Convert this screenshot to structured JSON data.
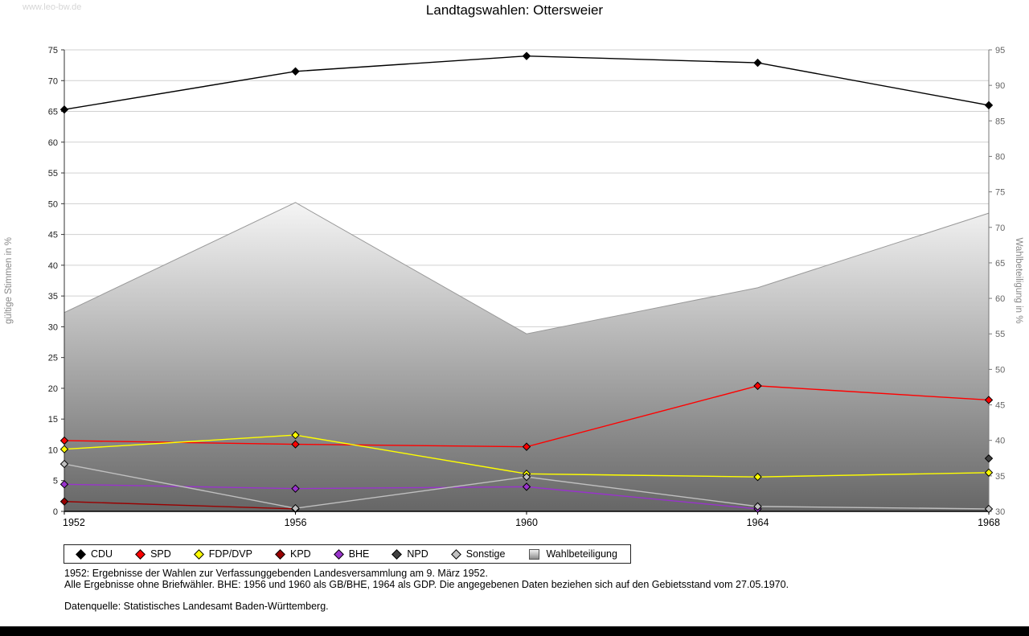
{
  "watermark": "www.leo-bw.de",
  "title": "Landtagswahlen: Ottersweier",
  "chart_data": {
    "type": "line",
    "x": [
      "1952",
      "1956",
      "1960",
      "1964",
      "1968"
    ],
    "left_axis": {
      "label": "gültige Stimmen in %",
      "min": 0,
      "max": 75,
      "tick_step": 5
    },
    "right_axis": {
      "label": "Wahlbeteiligung in %",
      "min": 30,
      "max": 95,
      "tick_step": 5
    },
    "area_series": {
      "name": "Wahlbeteiligung",
      "axis": "right",
      "values": [
        58,
        73.5,
        55,
        61.5,
        72
      ],
      "fill_top": "#f5f5f5",
      "fill_bottom": "#666666",
      "stroke": "#999999"
    },
    "series": [
      {
        "name": "CDU",
        "color": "#000000",
        "values": [
          65.3,
          71.5,
          74.0,
          72.9,
          66.0
        ]
      },
      {
        "name": "SPD",
        "color": "#ff0000",
        "values": [
          11.5,
          10.9,
          10.5,
          20.4,
          18.1
        ]
      },
      {
        "name": "FDP/DVP",
        "color": "#ffff00",
        "values": [
          10.1,
          12.4,
          6.1,
          5.6,
          6.3
        ]
      },
      {
        "name": "KPD",
        "color": "#990000",
        "values": [
          1.6,
          0.4,
          null,
          null,
          null
        ]
      },
      {
        "name": "BHE",
        "color": "#9933cc",
        "values": [
          4.4,
          3.7,
          4.0,
          0.4,
          null
        ]
      },
      {
        "name": "NPD",
        "color": "#404040",
        "values": [
          null,
          null,
          null,
          null,
          8.6
        ]
      },
      {
        "name": "Sonstige",
        "color": "#c0c0c0",
        "values": [
          7.7,
          0.5,
          5.6,
          0.8,
          0.4
        ]
      }
    ],
    "legend": [
      {
        "label": "CDU",
        "color": "#000000",
        "shape": "diamond"
      },
      {
        "label": "SPD",
        "color": "#ff0000",
        "shape": "diamond"
      },
      {
        "label": "FDP/DVP",
        "color": "#ffff00",
        "shape": "diamond"
      },
      {
        "label": "KPD",
        "color": "#990000",
        "shape": "diamond"
      },
      {
        "label": "BHE",
        "color": "#9933cc",
        "shape": "diamond"
      },
      {
        "label": "NPD",
        "color": "#404040",
        "shape": "diamond"
      },
      {
        "label": "Sonstige",
        "color": "#c0c0c0",
        "shape": "diamond"
      },
      {
        "label": "Wahlbeteiligung",
        "color": "",
        "shape": "square"
      }
    ]
  },
  "footnotes": [
    "1952: Ergebnisse der Wahlen zur Verfassunggebenden Landesversammlung am 9. März 1952.",
    "Alle Ergebnisse ohne Briefwähler. BHE: 1956 und 1960 als GB/BHE, 1964 als GDP. Die angegebenen Daten beziehen sich auf den Gebietsstand vom 27.05.1970.",
    "Datenquelle: Statistisches Landesamt Baden-Württemberg."
  ]
}
